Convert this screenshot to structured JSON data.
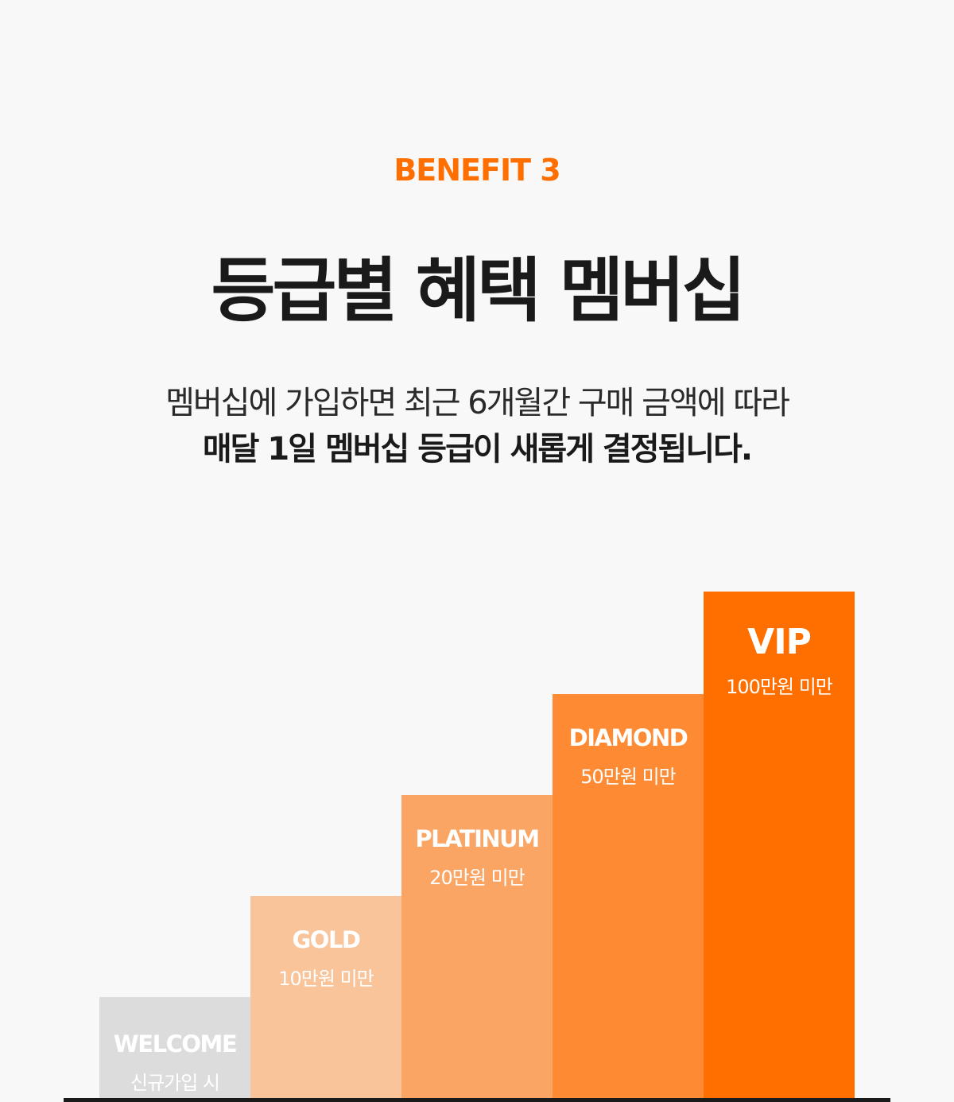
{
  "header": {
    "eyebrow": "BENEFIT 3",
    "title": "등급별 혜택 멤버십",
    "description_line1": "멤버십에 가입하면 최근 6개월간 구매 금액에 따라",
    "description_line2": "매달 1일 멤버십 등급이 새롭게 결정됩니다."
  },
  "colors": {
    "accent": "#ff6f00",
    "welcome": "#dcdcdc",
    "gold": "#f9c49a",
    "platinum": "#fba565",
    "diamond": "#fe8a33",
    "vip": "#ff6f00"
  },
  "tiers": [
    {
      "name": "WELCOME",
      "condition": "신규가입 시",
      "level": 1
    },
    {
      "name": "GOLD",
      "condition": "10만원 미만",
      "level": 2
    },
    {
      "name": "PLATINUM",
      "condition": "20만원 미만",
      "level": 3
    },
    {
      "name": "DIAMOND",
      "condition": "50만원 미만",
      "level": 4
    },
    {
      "name": "VIP",
      "condition": "100만원 미만",
      "level": 5
    }
  ]
}
